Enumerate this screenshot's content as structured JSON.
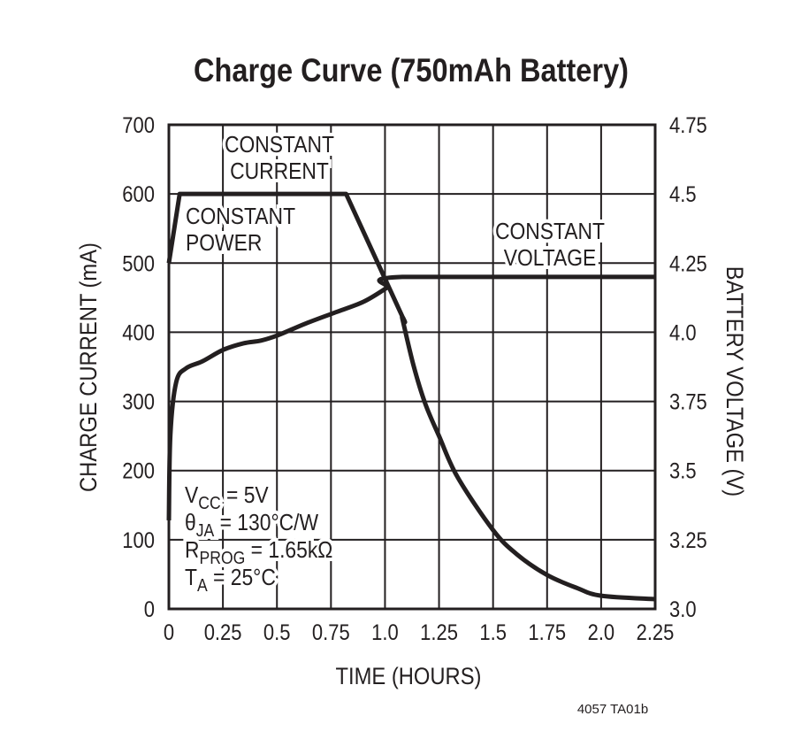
{
  "chart_data": {
    "type": "line",
    "title": "Charge Curve (750mAh Battery)",
    "xlabel": "TIME (HOURS)",
    "ylabel": "CHARGE CURRENT (mA)",
    "y2label": "BATTERY VOLTAGE (V)",
    "xlim": [
      0,
      2.25
    ],
    "ylim": [
      0,
      700
    ],
    "y2lim": [
      3.0,
      4.75
    ],
    "grid": true,
    "x_ticks": [
      "0",
      "0.25",
      "0.5",
      "0.75",
      "1.0",
      "1.25",
      "1.5",
      "1.75",
      "2.0",
      "2.25"
    ],
    "y_ticks": [
      "0",
      "100",
      "200",
      "300",
      "400",
      "500",
      "600",
      "700"
    ],
    "y2_ticks": [
      "3.0",
      "3.25",
      "3.5",
      "3.75",
      "4.0",
      "4.25",
      "4.5",
      "4.75"
    ],
    "series": [
      {
        "axis": "left",
        "x": [
          0,
          0.05,
          0.82,
          1.074,
          1.08,
          1.132,
          1.186,
          1.25,
          1.335,
          1.5,
          1.61,
          1.75,
          1.89,
          2.0,
          2.25
        ],
        "y": [
          500,
          600,
          600,
          427,
          420,
          352,
          297,
          250,
          191,
          114,
          79,
          49,
          30,
          19,
          14
        ]
      },
      {
        "axis": "right",
        "x": [
          0,
          0.007,
          0.034,
          0.08,
          0.155,
          0.25,
          0.345,
          0.426,
          0.507,
          0.628,
          0.764,
          0.9,
          1.007,
          1.08,
          2.25
        ],
        "y": [
          3.32,
          3.63,
          3.82,
          3.87,
          3.895,
          3.936,
          3.96,
          3.97,
          3.99,
          4.03,
          4.07,
          4.11,
          4.16,
          4.2,
          4.2
        ]
      }
    ],
    "annotations": [
      {
        "lines": [
          "CONSTANT",
          "CURRENT"
        ]
      },
      {
        "lines": [
          "CONSTANT",
          "POWER"
        ]
      },
      {
        "lines": [
          "CONSTANT",
          "VOLTAGE"
        ]
      }
    ],
    "conditions": [
      {
        "main": "V",
        "sub": "CC",
        "rest": " = 5V"
      },
      {
        "main": "θ",
        "sub": "JA",
        "rest": " = 130°C/W"
      },
      {
        "main": "R",
        "sub": "PROG",
        "rest": " = 1.65kΩ"
      },
      {
        "main": "T",
        "sub": "A",
        "rest": " = 25°C"
      }
    ]
  },
  "footer": "4057 TA01b",
  "colors": {
    "ink": "#231f20",
    "background": "#ffffff"
  }
}
